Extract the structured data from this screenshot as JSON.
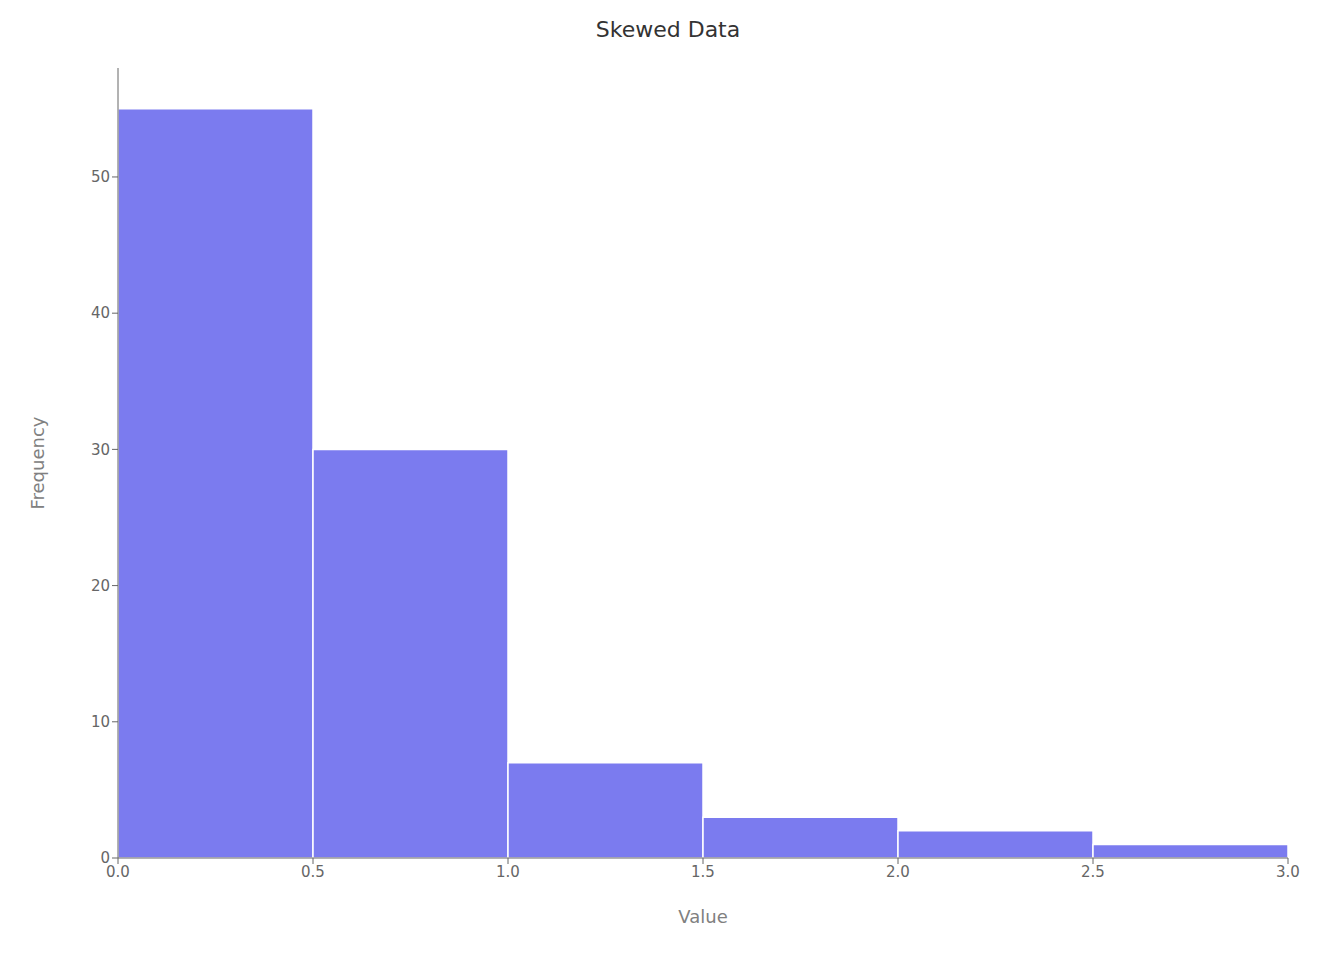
{
  "chart_data": {
    "type": "histogram",
    "title": "Skewed Data",
    "xlabel": "Value",
    "ylabel": "Frequency",
    "bins": [
      0.0,
      0.5,
      1.0,
      1.5,
      2.0,
      2.5,
      3.0
    ],
    "values": [
      55,
      30,
      7,
      3,
      2,
      1
    ],
    "color": "#7b7bef",
    "xlim": [
      0.0,
      3.0
    ],
    "ylim": [
      0,
      58
    ],
    "xticks": [
      {
        "value": 0.0,
        "label": "0.0"
      },
      0.5,
      {
        "value": 1.0,
        "label": "1.0"
      },
      1.5,
      {
        "value": 2.0,
        "label": "2.0"
      },
      2.5,
      {
        "value": 3.0,
        "label": "3.0"
      }
    ],
    "yticks": [
      0,
      10,
      20,
      30,
      40,
      50
    ],
    "grid": false
  }
}
